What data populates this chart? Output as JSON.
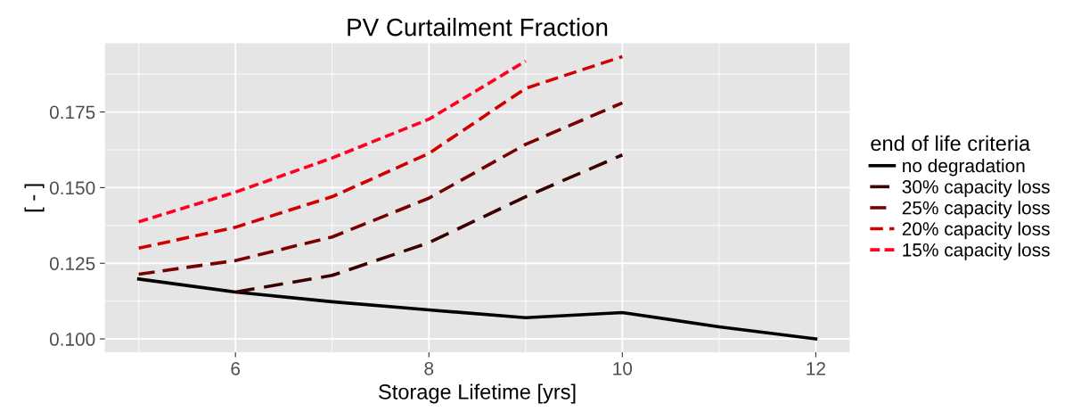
{
  "chart_data": {
    "type": "line",
    "title": "PV Curtailment Fraction",
    "xlabel": "Storage Lifetime [yrs]",
    "ylabel": "[ - ]",
    "legend_title": "end of life criteria",
    "legend": "right",
    "grid": true,
    "xlim": [
      4.65,
      12.35
    ],
    "xticks": [
      6,
      8,
      10,
      12
    ],
    "ylim": [
      0.0956,
      0.1977
    ],
    "yticks": [
      {
        "value": 0.1,
        "label": "0.100"
      },
      {
        "value": 0.125,
        "label": "0.125"
      },
      {
        "value": 0.15,
        "label": "0.150"
      },
      {
        "value": 0.175,
        "label": "0.175"
      }
    ],
    "series": [
      {
        "name": "no degradation",
        "color": "#000000",
        "line_style": "solid",
        "x": [
          5,
          6,
          7,
          8,
          9,
          10,
          11,
          12
        ],
        "values": [
          0.1198,
          0.1155,
          0.1123,
          0.1096,
          0.107,
          0.1087,
          0.104,
          0.1
        ]
      },
      {
        "name": "30% capacity loss",
        "color": "#3a0000",
        "line_style": "dashed",
        "x": [
          6,
          7,
          8,
          9,
          10
        ],
        "values": [
          0.1155,
          0.121,
          0.1318,
          0.147,
          0.1608
        ]
      },
      {
        "name": "25% capacity loss",
        "color": "#780000",
        "line_style": "dashed",
        "x": [
          5,
          6,
          7,
          8,
          9,
          10
        ],
        "values": [
          0.1214,
          0.1259,
          0.1337,
          0.1465,
          0.1643,
          0.178
        ]
      },
      {
        "name": "20% capacity loss",
        "color": "#d10000",
        "line_style": "dashed",
        "x": [
          5,
          6,
          7,
          8,
          9,
          10
        ],
        "values": [
          0.13,
          0.1369,
          0.147,
          0.1613,
          0.1828,
          0.1933
        ]
      },
      {
        "name": "15% capacity loss",
        "color": "#ff0022",
        "line_style": "dashed",
        "x": [
          5,
          6,
          7,
          8,
          9
        ],
        "values": [
          0.1387,
          0.1485,
          0.1598,
          0.1726,
          0.1918
        ]
      }
    ]
  }
}
